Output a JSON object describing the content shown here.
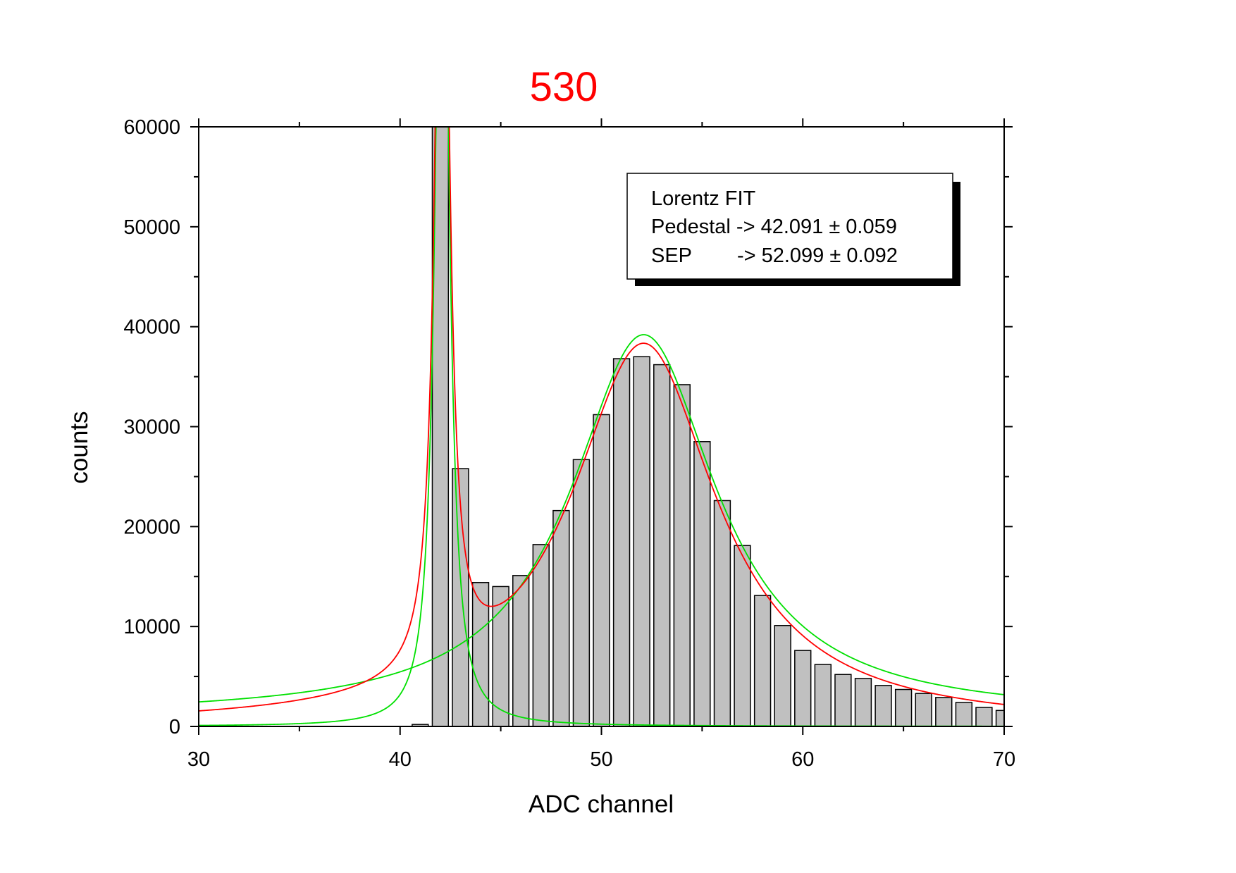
{
  "chart_data": {
    "type": "bar",
    "title": "530",
    "title_color": "#ff0000",
    "xlabel": "ADC channel",
    "ylabel": "counts",
    "xlim": [
      30,
      70
    ],
    "ylim": [
      0,
      60000
    ],
    "x_ticks": [
      "30",
      "40",
      "50",
      "60",
      "70"
    ],
    "y_ticks": [
      "0",
      "10000",
      "20000",
      "30000",
      "40000",
      "50000",
      "60000"
    ],
    "grid": false,
    "bar_color": "#c0c0c0",
    "bar_edge_color": "#000000",
    "bins": {
      "x": [
        41,
        42,
        43,
        44,
        45,
        46,
        47,
        48,
        49,
        50,
        51,
        52,
        53,
        54,
        55,
        56,
        57,
        58,
        59,
        60,
        61,
        62,
        63,
        64,
        65,
        66,
        67,
        68,
        69,
        70
      ],
      "counts": [
        200,
        60000,
        25800,
        14400,
        14000,
        15100,
        18200,
        21600,
        26700,
        31200,
        36800,
        37000,
        36200,
        34200,
        28500,
        22600,
        18100,
        13100,
        10100,
        7600,
        6200,
        5200,
        4800,
        4100,
        3700,
        3300,
        2900,
        2400,
        1900,
        1600
      ]
    },
    "series": [
      {
        "kind": "lorentz",
        "role": "pedestal",
        "color": "#00e000",
        "center": 42.091,
        "fwhm": 0.76,
        "amplitude": 100000,
        "offset": 0
      },
      {
        "kind": "lorentz",
        "role": "sep",
        "color": "#00e000",
        "center": 52.099,
        "fwhm": 8.8,
        "amplitude": 38200,
        "offset": 1000
      },
      {
        "kind": "sum",
        "role": "total",
        "color": "#ff0000"
      }
    ],
    "legend": {
      "placement": "top-right",
      "lines": [
        "Lorentz FIT",
        "Pedestal -> 42.091 ± 0.059",
        "SEP        -> 52.099 ± 0.092"
      ]
    }
  }
}
